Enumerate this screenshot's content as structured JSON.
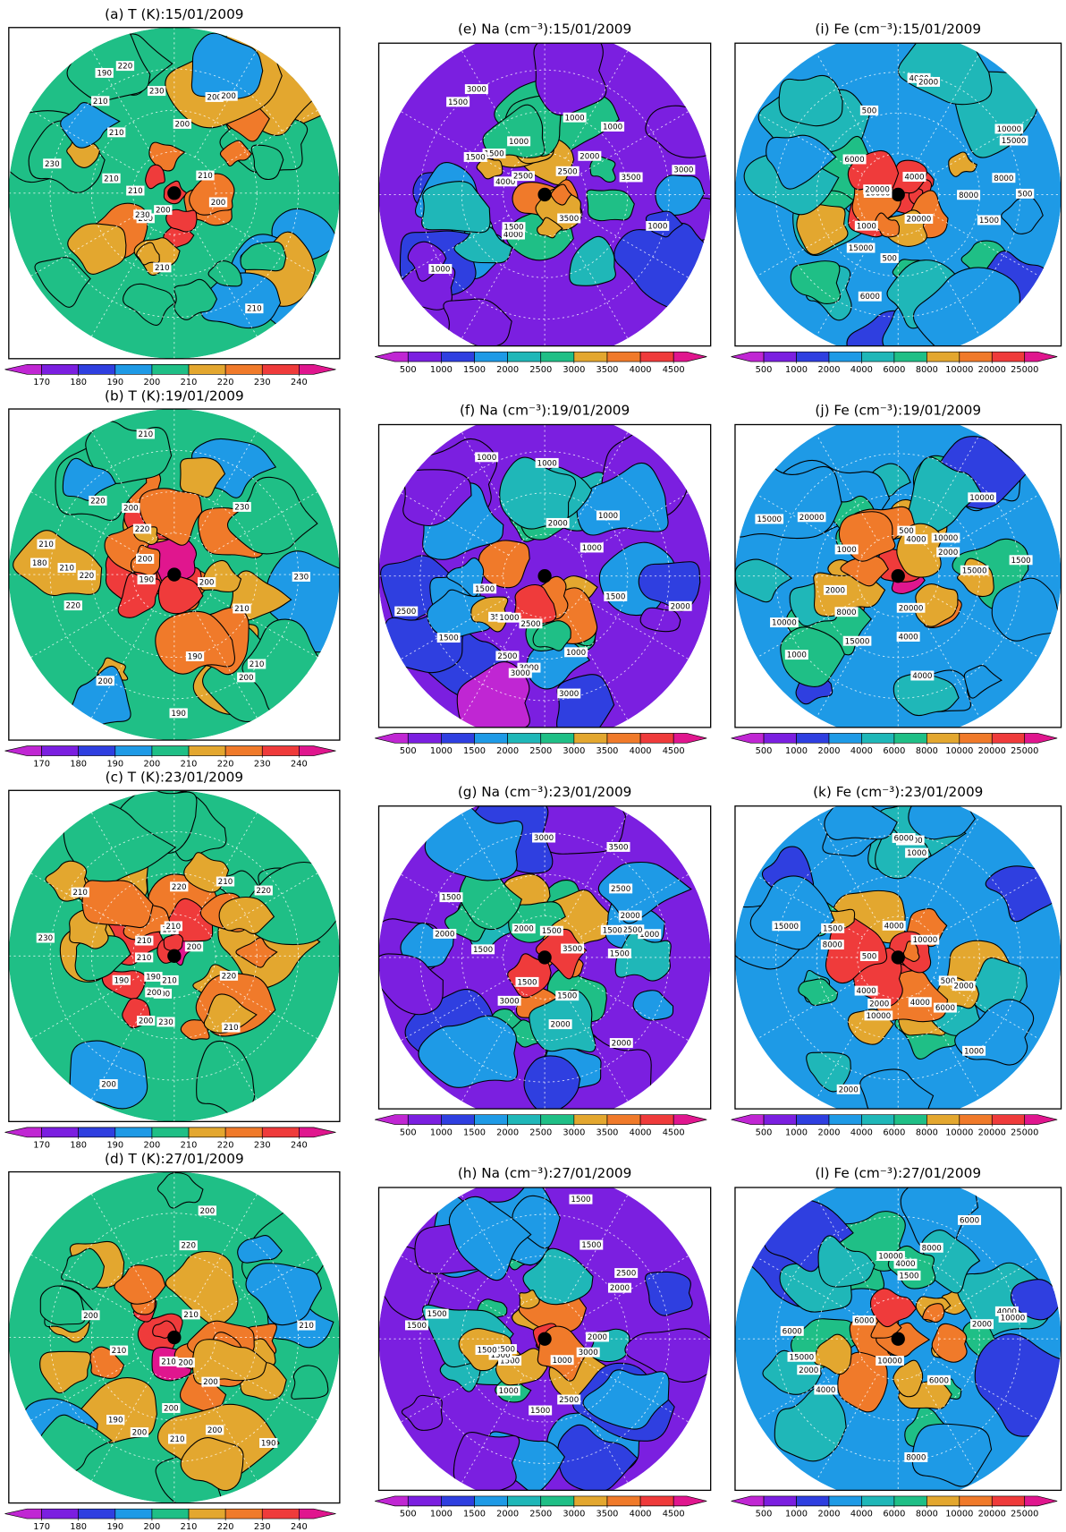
{
  "colorbars": {
    "T": {
      "ticks": [
        170,
        180,
        190,
        200,
        210,
        220,
        230,
        240
      ],
      "colors": [
        "#c026d3",
        "#7b1fe0",
        "#2f3fe0",
        "#1e9ae6",
        "#1fbf86",
        "#e3a72f",
        "#f07a2a",
        "#ef3b3b",
        "#e0168e"
      ]
    },
    "Na": {
      "ticks": [
        500,
        1000,
        1500,
        2000,
        2500,
        3000,
        3500,
        4000,
        4500
      ],
      "colors": [
        "#c026d3",
        "#7b1fe0",
        "#2f3fe0",
        "#1e9ae6",
        "#1fb7b8",
        "#1fbf86",
        "#e3a72f",
        "#f07a2a",
        "#ef3b3b",
        "#e0168e"
      ]
    },
    "Fe": {
      "ticks": [
        500,
        1000,
        2000,
        4000,
        6000,
        8000,
        10000,
        20000,
        25000
      ],
      "colors": [
        "#c026d3",
        "#7b1fe0",
        "#2f3fe0",
        "#1e9ae6",
        "#1fb7b8",
        "#1fbf86",
        "#e3a72f",
        "#f07a2a",
        "#ef3b3b",
        "#e0168e"
      ]
    }
  },
  "panels": [
    {
      "title": "(a) T (K):15/01/2009",
      "field": "T",
      "contour_labels": [
        200,
        210,
        210,
        210,
        210,
        230,
        220,
        200,
        210,
        230,
        210,
        200,
        230,
        200,
        190,
        200,
        200,
        210
      ]
    },
    {
      "title": "(b) T (K):19/01/2009",
      "field": "T",
      "contour_labels": [
        210,
        200,
        200,
        210,
        210,
        220,
        220,
        180,
        190,
        190,
        210,
        230,
        200,
        230,
        220,
        200,
        190,
        220,
        200,
        210
      ]
    },
    {
      "title": "(c) T (K):23/01/2009",
      "field": "T",
      "contour_labels": [
        220,
        210,
        210,
        200,
        190,
        230,
        220,
        210,
        190,
        210,
        220,
        210,
        230,
        190,
        200,
        200,
        200,
        200,
        210,
        210
      ]
    },
    {
      "title": "(d) T (K):27/01/2009",
      "field": "T",
      "contour_labels": [
        200,
        190,
        200,
        190,
        210,
        200,
        210,
        200,
        220,
        210,
        200,
        200,
        210,
        200,
        210
      ]
    },
    {
      "title": "(e) Na (cm⁻³):15/01/2009",
      "field": "Na",
      "contour_labels": [
        1000,
        1500,
        1000,
        3000,
        4000,
        3500,
        2000,
        4000,
        2500,
        3000,
        1500,
        1500,
        3500,
        2500,
        1000,
        1000,
        1500,
        1000
      ]
    },
    {
      "title": "(f) Na (cm⁻³):19/01/2009",
      "field": "Na",
      "contour_labels": [
        2000,
        1000,
        2500,
        1000,
        3000,
        1500,
        3500,
        2500,
        3000,
        3000,
        1000,
        1000,
        2000,
        1500,
        2500,
        1000,
        1500,
        1000
      ]
    },
    {
      "title": "(g) Na (cm⁻³):23/01/2009",
      "field": "Na",
      "contour_labels": [
        1500,
        2000,
        1000,
        3000,
        3500,
        3500,
        1500,
        2500,
        2000,
        2500,
        2000,
        3000,
        2000,
        1500,
        1500,
        2000,
        1500,
        1500,
        1500
      ]
    },
    {
      "title": "(h) Na (cm⁻³):27/01/2009",
      "field": "Na",
      "contour_labels": [
        1500,
        1500,
        2000,
        1000,
        1500,
        2500,
        1500,
        2500,
        2000,
        2500,
        3000,
        1500,
        1000,
        1500,
        1500,
        1500
      ]
    },
    {
      "title": "(i) Fe (cm⁻³):15/01/2009",
      "field": "Fe",
      "contour_labels": [
        4000,
        4000,
        6000,
        15000,
        10000,
        8000,
        20000,
        2000,
        6000,
        15000,
        20000,
        1500,
        8000,
        10000,
        500,
        500,
        500,
        1000
      ]
    },
    {
      "title": "(j) Fe (cm⁻³):19/01/2009",
      "field": "Fe",
      "contour_labels": [
        4000,
        4000,
        20000,
        8000,
        15000,
        20000,
        10000,
        1000,
        10000,
        15000,
        2000,
        2000,
        1000,
        1500,
        500,
        4000,
        15000,
        10000
      ]
    },
    {
      "title": "(k) Fe (cm⁻³):23/01/2009",
      "field": "Fe",
      "contour_labels": [
        4000,
        2000,
        6000,
        15000,
        4000,
        500,
        10000,
        8000,
        10000,
        15000,
        6000,
        1000,
        4000,
        500,
        2000,
        1500,
        1000,
        2000
      ]
    },
    {
      "title": "(l) Fe (cm⁻³):27/01/2009",
      "field": "Fe",
      "contour_labels": [
        4000,
        6000,
        8000,
        6000,
        4000,
        6000,
        2000,
        10000,
        15000,
        10000,
        8000,
        10000,
        1500,
        2000,
        6000,
        4000
      ]
    }
  ]
}
